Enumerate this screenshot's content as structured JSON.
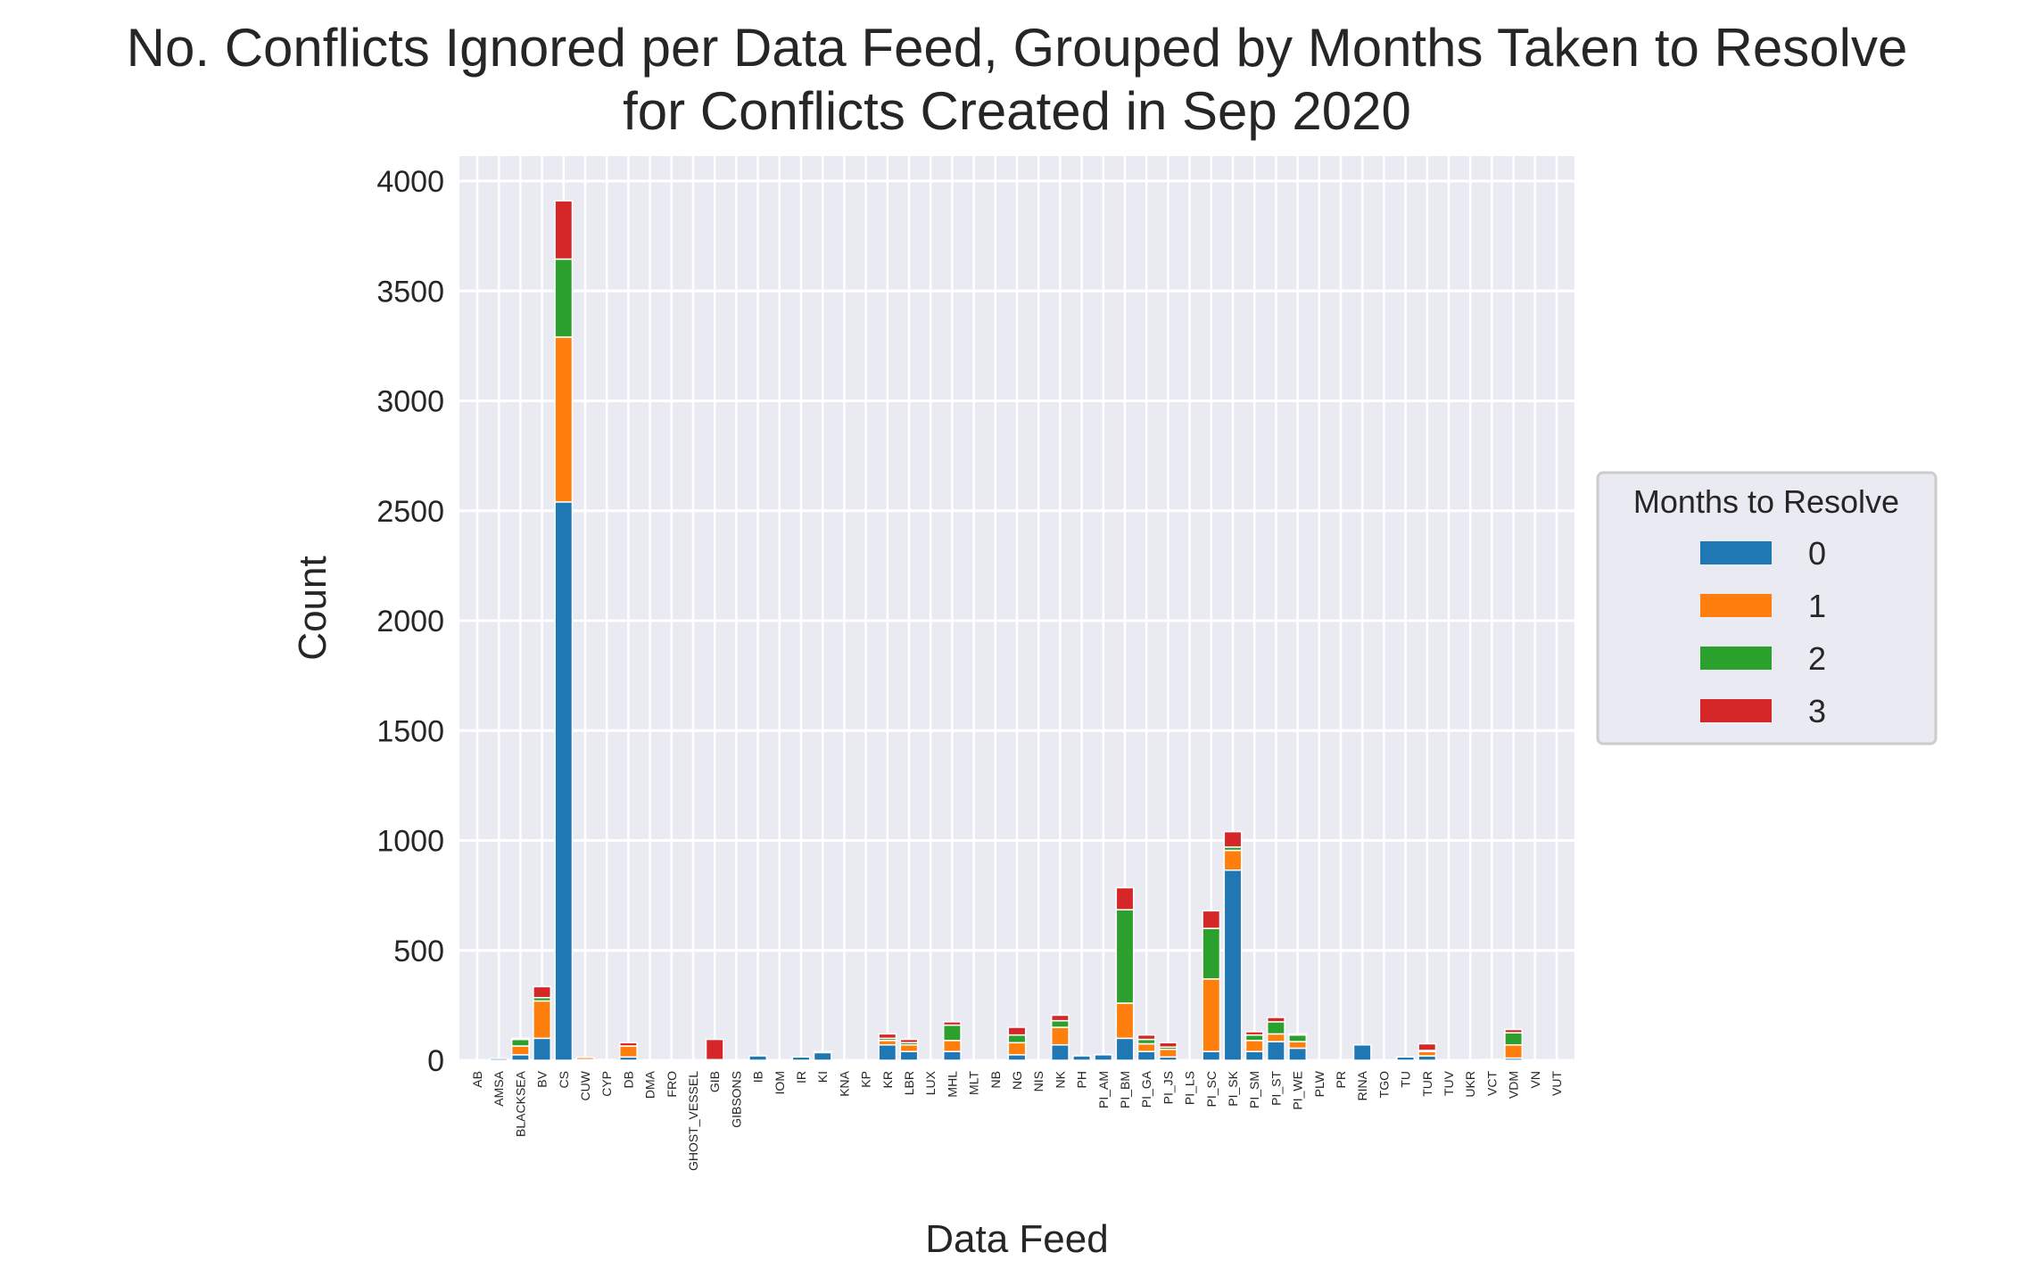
{
  "chart_data": {
    "type": "bar",
    "stacked": true,
    "title_line1": "No. Conflicts Ignored per Data Feed, Grouped by Months Taken to Resolve",
    "title_line2": "for Conflicts Created in Sep 2020",
    "xlabel": "Data Feed",
    "ylabel": "Count",
    "ylim": [
      0,
      4100
    ],
    "yticks": [
      0,
      500,
      1000,
      1500,
      2000,
      2500,
      3000,
      3500,
      4000
    ],
    "grid": true,
    "legend": {
      "title": "Months to Resolve",
      "placement": "center-right outside"
    },
    "categories": [
      "AB",
      "AMSA",
      "BLACKSEA",
      "BV",
      "CS",
      "CUW",
      "CYP",
      "DB",
      "DMA",
      "FRO",
      "GHOST_VESSEL",
      "GIB",
      "GIBSONS",
      "IB",
      "IOM",
      "IR",
      "KI",
      "KNA",
      "KP",
      "KR",
      "LBR",
      "LUX",
      "MHL",
      "MLT",
      "NB",
      "NG",
      "NIS",
      "NK",
      "PH",
      "PI_AM",
      "PI_BM",
      "PI_GA",
      "PI_JS",
      "PI_LS",
      "PI_SC",
      "PI_SK",
      "PI_SM",
      "PI_ST",
      "PI_WE",
      "PLW",
      "PR",
      "RINA",
      "TGO",
      "TU",
      "TUR",
      "TUV",
      "UKR",
      "VCT",
      "VDM",
      "VN",
      "VUT"
    ],
    "series": [
      {
        "name": "0",
        "color": "#1f77b4",
        "values": [
          3,
          8,
          25,
          100,
          2540,
          3,
          2,
          15,
          2,
          3,
          3,
          3,
          3,
          20,
          3,
          15,
          35,
          2,
          2,
          70,
          40,
          3,
          40,
          3,
          2,
          25,
          3,
          70,
          20,
          25,
          100,
          40,
          15,
          2,
          40,
          865,
          40,
          85,
          55,
          3,
          3,
          70,
          3,
          15,
          20,
          3,
          3,
          5,
          10,
          3,
          3
        ]
      },
      {
        "name": "1",
        "color": "#ff7f0e",
        "values": [
          0,
          0,
          40,
          170,
          750,
          10,
          2,
          50,
          0,
          0,
          0,
          0,
          0,
          0,
          0,
          0,
          5,
          0,
          0,
          20,
          30,
          0,
          50,
          0,
          0,
          55,
          0,
          80,
          0,
          0,
          160,
          35,
          35,
          0,
          330,
          90,
          50,
          35,
          30,
          0,
          0,
          0,
          0,
          0,
          20,
          0,
          0,
          0,
          60,
          0,
          0
        ]
      },
      {
        "name": "2",
        "color": "#2ca02c",
        "values": [
          0,
          0,
          30,
          15,
          355,
          0,
          0,
          0,
          0,
          0,
          0,
          0,
          0,
          0,
          0,
          0,
          0,
          0,
          0,
          10,
          10,
          0,
          70,
          0,
          0,
          35,
          0,
          30,
          0,
          0,
          425,
          20,
          10,
          0,
          230,
          15,
          25,
          55,
          30,
          0,
          0,
          0,
          0,
          0,
          5,
          0,
          0,
          0,
          55,
          0,
          0
        ]
      },
      {
        "name": "3",
        "color": "#d62728",
        "values": [
          0,
          0,
          5,
          50,
          265,
          0,
          0,
          15,
          0,
          0,
          0,
          92,
          0,
          0,
          0,
          0,
          0,
          0,
          0,
          20,
          15,
          0,
          15,
          0,
          0,
          35,
          0,
          25,
          0,
          0,
          100,
          20,
          20,
          0,
          80,
          70,
          15,
          20,
          5,
          0,
          0,
          0,
          0,
          0,
          30,
          0,
          0,
          0,
          15,
          0,
          0
        ]
      }
    ]
  }
}
